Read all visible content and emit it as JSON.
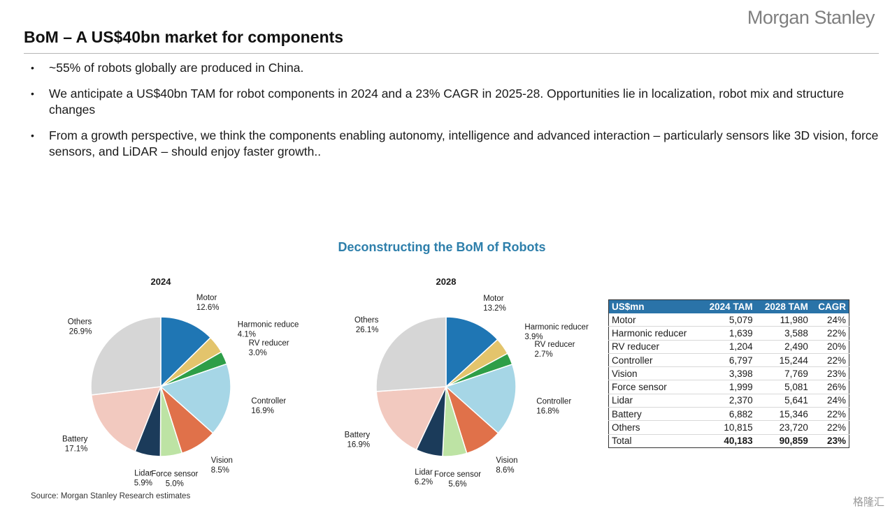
{
  "brand": "Morgan Stanley",
  "title": "BoM – A US$40bn market for components",
  "bullets": [
    "~55% of robots globally are produced in China.",
    "We anticipate a US$40bn TAM for robot components in 2024 and a 23% CAGR in 2025-28. Opportunities lie in localization, robot mix and structure changes",
    "From a growth perspective, we think the components enabling autonomy, intelligence and advanced interaction – particularly sensors like 3D vision, force sensors, and LiDAR – should enjoy faster growth.."
  ],
  "source": "Source: Morgan Stanley Research estimates",
  "watermark": "格隆汇",
  "chart_data": [
    {
      "type": "pie",
      "title": "Deconstructing the BoM of Robots",
      "subtitle": "2024",
      "slices": [
        {
          "name": "Motor",
          "label": "Motor",
          "value": 12.6,
          "color": "#1f76b4"
        },
        {
          "name": "Harmonic reducer",
          "label": "Harmonic reduce",
          "value": 4.1,
          "color": "#e3c46c"
        },
        {
          "name": "RV reducer",
          "label": "RV reducer",
          "value": 3.0,
          "color": "#2e9e48"
        },
        {
          "name": "Controller",
          "label": "Controller",
          "value": 16.9,
          "color": "#a6d6e6"
        },
        {
          "name": "Vision",
          "label": "Vision",
          "value": 8.5,
          "color": "#e0714a"
        },
        {
          "name": "Force sensor",
          "label": "Force sensor",
          "value": 5.0,
          "color": "#bde3a4"
        },
        {
          "name": "Lidar",
          "label": "Lidar",
          "value": 5.9,
          "color": "#1b3b5a"
        },
        {
          "name": "Battery",
          "label": "Battery",
          "value": 17.1,
          "color": "#f2c9bf"
        },
        {
          "name": "Others",
          "label": "Others",
          "value": 26.9,
          "color": "#d6d6d6"
        }
      ],
      "value_labels": [
        "12.6%",
        "4.1%",
        "3.0%",
        "16.9%",
        "8.5%",
        "5.0%",
        "5.9%",
        "17.1%",
        "26.9%"
      ]
    },
    {
      "type": "pie",
      "subtitle": "2028",
      "slices": [
        {
          "name": "Motor",
          "label": "Motor",
          "value": 13.2,
          "color": "#1f76b4"
        },
        {
          "name": "Harmonic reducer",
          "label": "Harmonic reducer",
          "value": 3.9,
          "color": "#e3c46c"
        },
        {
          "name": "RV reducer",
          "label": "RV reducer",
          "value": 2.7,
          "color": "#2e9e48"
        },
        {
          "name": "Controller",
          "label": "Controller",
          "value": 16.8,
          "color": "#a6d6e6"
        },
        {
          "name": "Vision",
          "label": "Vision",
          "value": 8.6,
          "color": "#e0714a"
        },
        {
          "name": "Force sensor",
          "label": "Force sensor",
          "value": 5.6,
          "color": "#bde3a4"
        },
        {
          "name": "Lidar",
          "label": "Lidar",
          "value": 6.2,
          "color": "#1b3b5a"
        },
        {
          "name": "Battery",
          "label": "Battery",
          "value": 16.9,
          "color": "#f2c9bf"
        },
        {
          "name": "Others",
          "label": "Others",
          "value": 26.1,
          "color": "#d6d6d6"
        }
      ],
      "value_labels": [
        "13.2%",
        "3.9%",
        "2.7%",
        "16.8%",
        "8.6%",
        "5.6%",
        "6.2%",
        "16.9%",
        "26.1%"
      ]
    },
    {
      "type": "table",
      "columns": [
        "US$mn",
        "2024 TAM",
        "2028 TAM",
        "CAGR"
      ],
      "rows": [
        [
          "Motor",
          "5,079",
          "11,980",
          "24%"
        ],
        [
          "Harmonic reducer",
          "1,639",
          "3,588",
          "22%"
        ],
        [
          "RV reducer",
          "1,204",
          "2,490",
          "20%"
        ],
        [
          "Controller",
          "6,797",
          "15,244",
          "22%"
        ],
        [
          "Vision",
          "3,398",
          "7,769",
          "23%"
        ],
        [
          "Force sensor",
          "1,999",
          "5,081",
          "26%"
        ],
        [
          "Lidar",
          "2,370",
          "5,641",
          "24%"
        ],
        [
          "Battery",
          "6,882",
          "15,346",
          "22%"
        ],
        [
          "Others",
          "10,815",
          "23,720",
          "22%"
        ]
      ],
      "total": [
        "Total",
        "40,183",
        "90,859",
        "23%"
      ]
    }
  ]
}
